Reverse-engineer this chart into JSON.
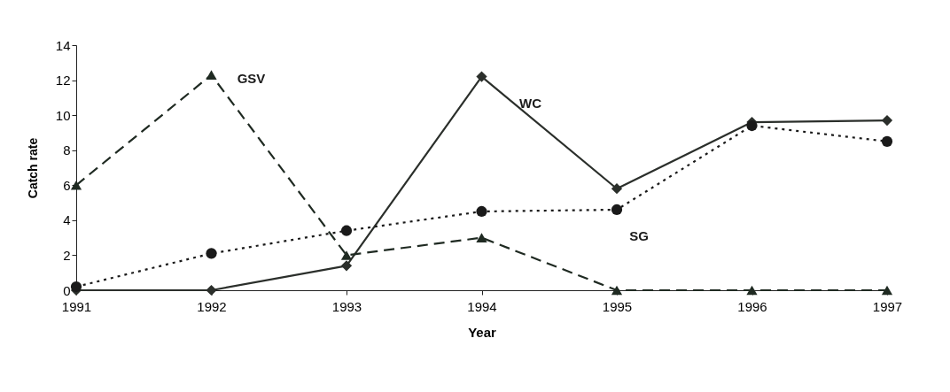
{
  "chart_data": {
    "type": "line",
    "xlabel": "Year",
    "ylabel": "Catch rate",
    "categories": [
      "1991",
      "1992",
      "1993",
      "1994",
      "1995",
      "1996",
      "1997"
    ],
    "series": [
      {
        "name": "WC",
        "color": "#2b2f2b",
        "values": [
          0,
          0,
          1.4,
          12.2,
          5.8,
          9.6,
          9.7
        ],
        "marker": "diamond",
        "line_style": "solid"
      },
      {
        "name": "SG",
        "color": "#1a1a1a",
        "values": [
          0.2,
          2.1,
          3.4,
          4.5,
          4.6,
          9.4,
          8.5
        ],
        "marker": "circle",
        "line_style": "dotted"
      },
      {
        "name": "GSV",
        "color": "#1f2a22",
        "values": [
          6,
          12.3,
          2.0,
          3.0,
          0,
          0,
          0
        ],
        "marker": "triangle",
        "line_style": "dashed"
      }
    ],
    "ylim": [
      0,
      14
    ],
    "yticks": [
      0,
      2,
      4,
      6,
      8,
      10,
      12,
      14
    ],
    "grid": false
  }
}
